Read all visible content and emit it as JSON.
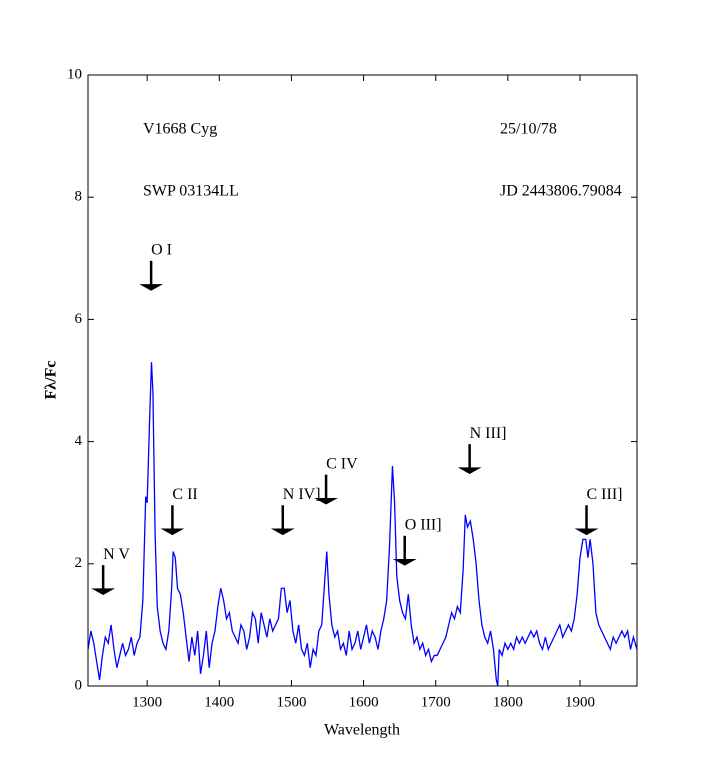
{
  "chart_data": {
    "type": "line",
    "xlabel": "Wavelength",
    "ylabel": "Fλ/Fc",
    "labels": [
      "V1668 Cyg",
      "25/10/78",
      "SWP 03134LL",
      "JD 2443806.79084"
    ],
    "color": "#0000ff",
    "xlim": [
      1218,
      1979
    ],
    "ylim": [
      0,
      10
    ],
    "xticks": [
      1300,
      1400,
      1500,
      1600,
      1700,
      1800,
      1900
    ],
    "yticks": [
      0,
      2,
      4,
      6,
      8,
      10
    ],
    "x": [
      1218,
      1222,
      1226,
      1230,
      1234,
      1238,
      1242,
      1246,
      1250,
      1254,
      1258,
      1262,
      1266,
      1270,
      1274,
      1278,
      1282,
      1286,
      1290,
      1294,
      1298,
      1300,
      1303,
      1306,
      1308,
      1311,
      1314,
      1318,
      1322,
      1326,
      1330,
      1334,
      1336,
      1339,
      1342,
      1346,
      1350,
      1354,
      1358,
      1362,
      1366,
      1370,
      1374,
      1378,
      1382,
      1386,
      1390,
      1394,
      1398,
      1402,
      1406,
      1410,
      1414,
      1418,
      1422,
      1426,
      1430,
      1434,
      1438,
      1442,
      1446,
      1450,
      1454,
      1458,
      1462,
      1466,
      1470,
      1474,
      1478,
      1482,
      1486,
      1490,
      1494,
      1498,
      1502,
      1506,
      1510,
      1514,
      1518,
      1522,
      1526,
      1530,
      1534,
      1538,
      1542,
      1546,
      1549,
      1552,
      1556,
      1560,
      1564,
      1568,
      1572,
      1576,
      1580,
      1584,
      1588,
      1592,
      1596,
      1600,
      1604,
      1608,
      1612,
      1616,
      1620,
      1624,
      1628,
      1632,
      1636,
      1640,
      1643,
      1646,
      1650,
      1654,
      1658,
      1662,
      1666,
      1670,
      1674,
      1678,
      1682,
      1686,
      1690,
      1694,
      1698,
      1702,
      1706,
      1710,
      1714,
      1718,
      1722,
      1726,
      1730,
      1734,
      1738,
      1741,
      1744,
      1748,
      1752,
      1756,
      1760,
      1764,
      1768,
      1772,
      1776,
      1780,
      1784,
      1786,
      1788,
      1792,
      1796,
      1800,
      1804,
      1808,
      1812,
      1816,
      1820,
      1824,
      1828,
      1832,
      1836,
      1840,
      1844,
      1848,
      1852,
      1856,
      1860,
      1864,
      1868,
      1872,
      1876,
      1880,
      1884,
      1888,
      1892,
      1896,
      1900,
      1904,
      1908,
      1911,
      1914,
      1918,
      1922,
      1926,
      1930,
      1934,
      1938,
      1942,
      1946,
      1950,
      1954,
      1958,
      1962,
      1966,
      1970,
      1974,
      1979
    ],
    "values": [
      0.6,
      0.9,
      0.7,
      0.4,
      0.1,
      0.5,
      0.8,
      0.7,
      1.0,
      0.6,
      0.3,
      0.5,
      0.7,
      0.5,
      0.6,
      0.8,
      0.5,
      0.7,
      0.8,
      1.4,
      3.1,
      3.0,
      4.2,
      5.3,
      4.8,
      2.5,
      1.3,
      0.9,
      0.7,
      0.6,
      0.9,
      1.6,
      2.2,
      2.1,
      1.6,
      1.5,
      1.2,
      0.8,
      0.4,
      0.8,
      0.5,
      0.9,
      0.2,
      0.5,
      0.9,
      0.3,
      0.7,
      0.9,
      1.3,
      1.6,
      1.4,
      1.1,
      1.2,
      0.9,
      0.8,
      0.7,
      1.0,
      0.9,
      0.6,
      0.8,
      1.2,
      1.1,
      0.7,
      1.2,
      1.0,
      0.8,
      1.1,
      0.9,
      1.0,
      1.1,
      1.6,
      1.6,
      1.2,
      1.4,
      0.9,
      0.7,
      1.0,
      0.6,
      0.5,
      0.7,
      0.3,
      0.6,
      0.5,
      0.9,
      1.0,
      1.7,
      2.2,
      1.5,
      1.0,
      0.8,
      0.9,
      0.6,
      0.7,
      0.5,
      0.9,
      0.6,
      0.7,
      0.9,
      0.6,
      0.8,
      1.0,
      0.7,
      0.9,
      0.8,
      0.6,
      0.9,
      1.1,
      1.4,
      2.3,
      3.6,
      3.0,
      1.8,
      1.4,
      1.2,
      1.1,
      1.5,
      1.0,
      0.7,
      0.8,
      0.6,
      0.7,
      0.5,
      0.6,
      0.4,
      0.5,
      0.5,
      0.6,
      0.7,
      0.8,
      1.0,
      1.2,
      1.1,
      1.3,
      1.2,
      1.9,
      2.8,
      2.6,
      2.7,
      2.4,
      2.0,
      1.4,
      1.0,
      0.8,
      0.7,
      0.9,
      0.6,
      0.1,
      0.0,
      0.6,
      0.5,
      0.7,
      0.6,
      0.7,
      0.6,
      0.8,
      0.7,
      0.8,
      0.7,
      0.8,
      0.9,
      0.8,
      0.9,
      0.7,
      0.6,
      0.8,
      0.6,
      0.7,
      0.8,
      0.9,
      1.0,
      0.8,
      0.9,
      1.0,
      0.9,
      1.1,
      1.5,
      2.1,
      2.4,
      2.4,
      2.1,
      2.4,
      2.0,
      1.2,
      1.0,
      0.9,
      0.8,
      0.7,
      0.6,
      0.8,
      0.7,
      0.8,
      0.9,
      0.8,
      0.9,
      0.6,
      0.8,
      0.6
    ],
    "annotations": [
      {
        "text": "N V",
        "x": 1239,
        "y": 1.52
      },
      {
        "text": "O I",
        "x": 1305.5,
        "y": 6.5
      },
      {
        "text": "C II",
        "x": 1335,
        "y": 2.5
      },
      {
        "text": "N IV]",
        "x": 1488,
        "y": 2.5
      },
      {
        "text": "C IV",
        "x": 1548,
        "y": 3.0
      },
      {
        "text": "O III]",
        "x": 1657,
        "y": 2.0
      },
      {
        "text": "N III]",
        "x": 1747,
        "y": 3.5
      },
      {
        "text": "C III]",
        "x": 1909,
        "y": 2.5
      }
    ]
  }
}
